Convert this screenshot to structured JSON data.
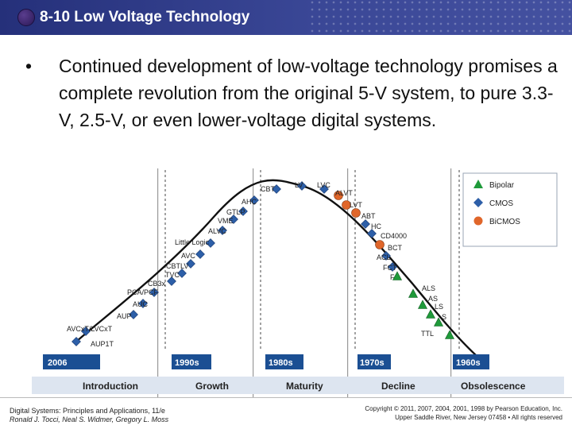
{
  "header": {
    "title": "8-10 Low Voltage Technology"
  },
  "bullet": {
    "mark": "•",
    "text": "Continued development of low-voltage technology promises a complete revolution from the original 5-V system, to pure 3.3-V, 2.5-V, or even lower-voltage digital systems."
  },
  "diagram": {
    "decades": [
      "2006",
      "1990s",
      "1980s",
      "1970s",
      "1960s"
    ],
    "phases": [
      "Introduction",
      "Growth",
      "Maturity",
      "Decline",
      "Obsolescence"
    ],
    "legend": [
      "Bipolar",
      "CMOS",
      "BiCMOS"
    ],
    "families": [
      {
        "name": "AUP1T",
        "tech": "CMOS"
      },
      {
        "name": "AVCxT/LVCxT",
        "tech": "CMOS"
      },
      {
        "name": "AUP",
        "tech": "CMOS"
      },
      {
        "name": "AUC",
        "tech": "CMOS"
      },
      {
        "name": "PCA/PCF",
        "tech": "CMOS"
      },
      {
        "name": "CB3x",
        "tech": "CMOS"
      },
      {
        "name": "TVC",
        "tech": "CMOS"
      },
      {
        "name": "CBTLV",
        "tech": "CMOS"
      },
      {
        "name": "AVC",
        "tech": "CMOS"
      },
      {
        "name": "Little Logic",
        "tech": "CMOS"
      },
      {
        "name": "ALVC",
        "tech": "CMOS"
      },
      {
        "name": "VME",
        "tech": "CMOS"
      },
      {
        "name": "GTLP",
        "tech": "CMOS"
      },
      {
        "name": "AHC",
        "tech": "CMOS"
      },
      {
        "name": "CBT",
        "tech": "CMOS"
      },
      {
        "name": "LV",
        "tech": "CMOS"
      },
      {
        "name": "LVC",
        "tech": "CMOS"
      },
      {
        "name": "ALVT",
        "tech": "BiCMOS"
      },
      {
        "name": "LVT",
        "tech": "BiCMOS"
      },
      {
        "name": "ABT",
        "tech": "BiCMOS"
      },
      {
        "name": "HC",
        "tech": "CMOS"
      },
      {
        "name": "CD4000",
        "tech": "CMOS"
      },
      {
        "name": "BCT",
        "tech": "BiCMOS"
      },
      {
        "name": "ACL",
        "tech": "CMOS"
      },
      {
        "name": "FCT",
        "tech": "CMOS"
      },
      {
        "name": "F",
        "tech": "Bipolar"
      },
      {
        "name": "ALS",
        "tech": "Bipolar"
      },
      {
        "name": "AS",
        "tech": "Bipolar"
      },
      {
        "name": "LS",
        "tech": "Bipolar"
      },
      {
        "name": "S",
        "tech": "Bipolar"
      },
      {
        "name": "TTL",
        "tech": "Bipolar"
      }
    ],
    "colors": {
      "Bipolar": "#1f9a3a",
      "CMOS": "#2d5fa8",
      "BiCMOS": "#e0662a",
      "curve": "#111111",
      "band": "#cfd9e8"
    }
  },
  "footer": {
    "left_line1": "Digital Systems: Principles and Applications, 11/e",
    "left_line2": "Ronald J. Tocci, Neal S. Widmer, Gregory L. Moss",
    "right_line1": "Copyright © 2011, 2007, 2004, 2001, 1998 by Pearson Education, Inc.",
    "right_line2": "Upper Saddle River, New Jersey 07458 • All rights reserved"
  }
}
